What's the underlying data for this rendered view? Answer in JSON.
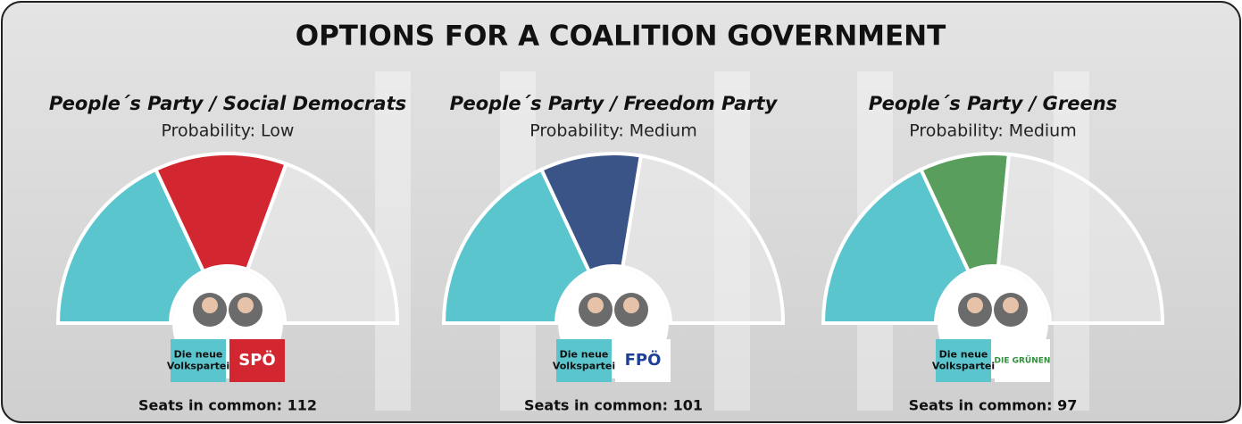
{
  "title": "OPTIONS FOR A COALITION GOVERNMENT",
  "chart_data": [
    {
      "type": "pie",
      "title": "People´s Party / Social Democrats",
      "subtitle": "Probability: Low",
      "categories": [
        null,
        null,
        null
      ],
      "values": [
        66,
        46,
        71
      ],
      "colors": [
        "#5bc5cd",
        "#d22630",
        "#ececec"
      ],
      "logos": [
        {
          "lines": [
            "Die neue",
            "Volkspartei"
          ],
          "color": "#5bc5cd",
          "text_color": "#111111"
        },
        {
          "lines": [
            "SPÖ"
          ],
          "color": "#d22630",
          "text_color": "#ffffff"
        }
      ],
      "footer": "Seats in common: 112"
    },
    {
      "type": "pie",
      "title": "People´s Party / Freedom Party",
      "subtitle": "Probability: Medium",
      "categories": [
        null,
        null,
        null
      ],
      "values": [
        66,
        35,
        82
      ],
      "colors": [
        "#5bc5cd",
        "#3b5488",
        "#ececec"
      ],
      "logos": [
        {
          "lines": [
            "Die neue",
            "Volkspartei"
          ],
          "color": "#5bc5cd",
          "text_color": "#111111"
        },
        {
          "lines": [
            "FPÖ"
          ],
          "color": "#ffffff",
          "text_color": "#1d3f96"
        }
      ],
      "footer": "Seats in common: 101"
    },
    {
      "type": "pie",
      "title": "People´s Party / Greens",
      "subtitle": "Probability: Medium",
      "categories": [
        null,
        null,
        null
      ],
      "values": [
        66,
        31,
        86
      ],
      "colors": [
        "#5bc5cd",
        "#5a9e5e",
        "#ececec"
      ],
      "logos": [
        {
          "lines": [
            "Die neue",
            "Volkspartei"
          ],
          "color": "#5bc5cd",
          "text_color": "#111111"
        },
        {
          "lines": [
            "DIE GRÜNEN"
          ],
          "color": "#ffffff",
          "text_color": "#2f8f3a"
        }
      ],
      "footer": "Seats in common: 97"
    }
  ]
}
